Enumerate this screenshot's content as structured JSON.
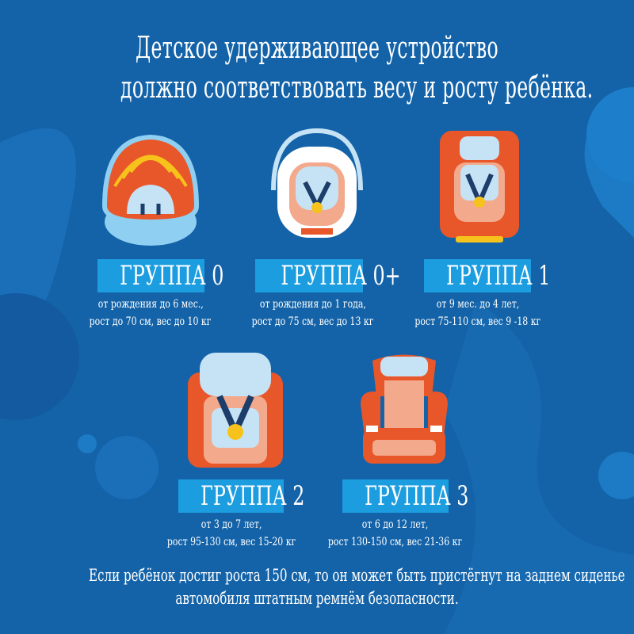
{
  "title": {
    "line1": "Детское удерживающее устройство",
    "line2": "должно соответствовать весу и росту ребёнка."
  },
  "groups": [
    {
      "label": "ГРУППА 0",
      "line1": "от рождения до 6 мес.,",
      "line2": "рост до 70 см, вес до 10 кг",
      "icon": "bassinet-carrier-icon"
    },
    {
      "label": "ГРУППА 0+",
      "line1": "от рождения до 1 года,",
      "line2": "рост до 75 см, вес до 13 кг",
      "icon": "infant-carrier-icon"
    },
    {
      "label": "ГРУППА 1",
      "line1": "от 9 мес. до 4 лет,",
      "line2": "рост 75-110 см, вес 9 -18 кг",
      "icon": "child-seat-icon"
    },
    {
      "label": "ГРУППА 2",
      "line1": "от 3 до 7 лет,",
      "line2": "рост 95-130 см, вес 15-20 кг",
      "icon": "child-seat-icon"
    },
    {
      "label": "ГРУППА 3",
      "line1": "от 6 до 12 лет,",
      "line2": "рост 130-150 см, вес 21-36 кг",
      "icon": "booster-seat-icon"
    }
  ],
  "footer": {
    "line1": "Если ребёнок достиг роста 150 см, то он может быть пристёгнут на заднем сиденье",
    "line2": "автомобиля штатным ремнём безопасности."
  },
  "colors": {
    "background": "#1463a8",
    "label": "#1c9de0",
    "seat": "#e8572a",
    "padding": "#c6e3f5",
    "buckle": "#f7c21c"
  }
}
